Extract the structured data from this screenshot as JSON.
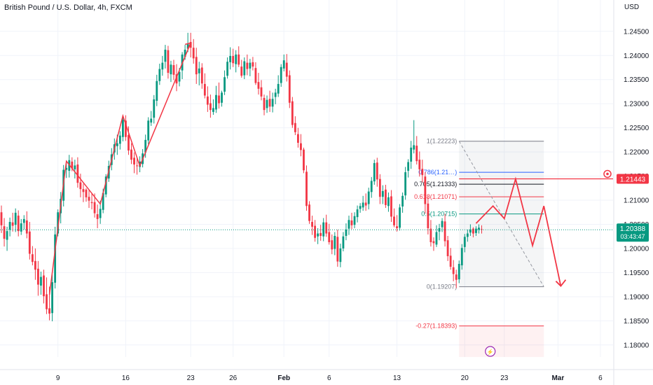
{
  "header": {
    "title": "British Pound / U.S. Dollar, 4h, FXCM",
    "currency": "USD"
  },
  "colors": {
    "up": "#089981",
    "down": "#f23645",
    "drawing": "#f23645",
    "blue": "#2962ff",
    "grid": "#f0f3fa"
  },
  "chart_data": {
    "type": "candlestick",
    "title": "British Pound / U.S. Dollar, 4h, FXCM",
    "ylabel": "USD",
    "ylim": [
      1.1775,
      1.2515
    ],
    "y_ticks": [
      "1.18000",
      "1.18500",
      "1.19000",
      "1.19500",
      "1.20000",
      "1.20500",
      "1.21000",
      "1.21500",
      "1.22000",
      "1.22500",
      "1.23000",
      "1.23500",
      "1.24000",
      "1.24500"
    ],
    "x_ticks": [
      "9",
      "16",
      "23",
      "26",
      "Feb",
      "6",
      "13",
      "20",
      "23",
      "Mar",
      "6"
    ],
    "x_tick_index": [
      20,
      44,
      67,
      82,
      100,
      116,
      140,
      164,
      178,
      197,
      212
    ],
    "n_bars": 217,
    "ohlc": [
      [
        1.2075,
        1.2089,
        1.2032,
        1.2048
      ],
      [
        1.2046,
        1.2063,
        1.2004,
        1.202
      ],
      [
        1.2018,
        1.2045,
        1.1995,
        1.2036
      ],
      [
        1.2039,
        1.2064,
        1.2025,
        1.2055
      ],
      [
        1.2054,
        1.2074,
        1.2035,
        1.2047
      ],
      [
        1.2049,
        1.2083,
        1.2034,
        1.2074
      ],
      [
        1.2068,
        1.2079,
        1.2025,
        1.2036
      ],
      [
        1.2035,
        1.2061,
        1.2028,
        1.2052
      ],
      [
        1.2053,
        1.2069,
        1.2039,
        1.2061
      ],
      [
        1.2058,
        1.2077,
        1.2021,
        1.2031
      ],
      [
        1.2035,
        1.2055,
        1.1977,
        1.1989
      ],
      [
        1.1988,
        1.2005,
        1.1965,
        1.1972
      ],
      [
        1.1974,
        1.2,
        1.1935,
        1.1956
      ],
      [
        1.1958,
        1.1974,
        1.1902,
        1.1925
      ],
      [
        1.1923,
        1.1952,
        1.1904,
        1.1941
      ],
      [
        1.1944,
        1.1956,
        1.1886,
        1.1901
      ],
      [
        1.1905,
        1.194,
        1.1864,
        1.1874
      ],
      [
        1.1876,
        1.1921,
        1.1851,
        1.1865
      ],
      [
        1.1866,
        1.1947,
        1.1849,
        1.193
      ],
      [
        1.1929,
        1.2045,
        1.1917,
        1.2029
      ],
      [
        1.2031,
        1.2081,
        1.2025,
        1.2075
      ],
      [
        1.2073,
        1.2117,
        1.2052,
        1.2103
      ],
      [
        1.2099,
        1.2173,
        1.2087,
        1.2163
      ],
      [
        1.2163,
        1.2182,
        1.2146,
        1.2167
      ],
      [
        1.2161,
        1.2194,
        1.2147,
        1.2183
      ],
      [
        1.218,
        1.2189,
        1.216,
        1.2166
      ],
      [
        1.2164,
        1.2184,
        1.2145,
        1.2172
      ],
      [
        1.2174,
        1.2189,
        1.2126,
        1.2136
      ],
      [
        1.2137,
        1.2155,
        1.2106,
        1.2123
      ],
      [
        1.2123,
        1.2134,
        1.2096,
        1.2117
      ],
      [
        1.2122,
        1.2125,
        1.2097,
        1.2106
      ],
      [
        1.2107,
        1.2121,
        1.2084,
        1.2099
      ],
      [
        1.2096,
        1.2115,
        1.2081,
        1.2094
      ],
      [
        1.2096,
        1.2114,
        1.2064,
        1.2073
      ],
      [
        1.2071,
        1.2091,
        1.2042,
        1.2061
      ],
      [
        1.2063,
        1.2099,
        1.2051,
        1.2082
      ],
      [
        1.208,
        1.2124,
        1.2073,
        1.2115
      ],
      [
        1.2112,
        1.2154,
        1.2106,
        1.2149
      ],
      [
        1.2145,
        1.2182,
        1.2138,
        1.2171
      ],
      [
        1.2173,
        1.2208,
        1.2162,
        1.2195
      ],
      [
        1.2199,
        1.2228,
        1.2184,
        1.2216
      ],
      [
        1.2212,
        1.2236,
        1.2194,
        1.2218
      ],
      [
        1.2217,
        1.2243,
        1.2205,
        1.2234
      ],
      [
        1.2231,
        1.2276,
        1.2222,
        1.2267
      ],
      [
        1.2265,
        1.2276,
        1.2223,
        1.2231
      ],
      [
        1.2235,
        1.2253,
        1.2194,
        1.2203
      ],
      [
        1.2205,
        1.2218,
        1.2175,
        1.2184
      ],
      [
        1.2188,
        1.2199,
        1.2156,
        1.2174
      ],
      [
        1.2172,
        1.2187,
        1.2153,
        1.2171
      ],
      [
        1.2169,
        1.2191,
        1.2158,
        1.218
      ],
      [
        1.2175,
        1.2206,
        1.2168,
        1.2197
      ],
      [
        1.2199,
        1.2236,
        1.2188,
        1.2225
      ],
      [
        1.2224,
        1.2272,
        1.2216,
        1.2265
      ],
      [
        1.2261,
        1.2285,
        1.2254,
        1.2269
      ],
      [
        1.2271,
        1.2318,
        1.2259,
        1.2309
      ],
      [
        1.2306,
        1.236,
        1.2295,
        1.2347
      ],
      [
        1.2347,
        1.2383,
        1.2339,
        1.2372
      ],
      [
        1.2371,
        1.2399,
        1.2358,
        1.2385
      ],
      [
        1.2387,
        1.2422,
        1.2373,
        1.2412
      ],
      [
        1.2411,
        1.242,
        1.2352,
        1.2364
      ],
      [
        1.2361,
        1.2389,
        1.2345,
        1.2381
      ],
      [
        1.238,
        1.2391,
        1.2349,
        1.236
      ],
      [
        1.2361,
        1.2382,
        1.2326,
        1.2342
      ],
      [
        1.2346,
        1.2374,
        1.2336,
        1.2366
      ],
      [
        1.2369,
        1.2407,
        1.2351,
        1.2402
      ],
      [
        1.2397,
        1.2422,
        1.2391,
        1.2412
      ],
      [
        1.2414,
        1.2447,
        1.2407,
        1.2424
      ],
      [
        1.2428,
        1.2447,
        1.2396,
        1.2416
      ],
      [
        1.2416,
        1.2434,
        1.2383,
        1.2394
      ],
      [
        1.2397,
        1.2416,
        1.2341,
        1.2361
      ],
      [
        1.2363,
        1.2387,
        1.2338,
        1.2373
      ],
      [
        1.2375,
        1.2384,
        1.2331,
        1.2342
      ],
      [
        1.2341,
        1.2363,
        1.2311,
        1.2317
      ],
      [
        1.2315,
        1.2336,
        1.2283,
        1.2298
      ],
      [
        1.2301,
        1.2319,
        1.2271,
        1.2287
      ],
      [
        1.2283,
        1.2309,
        1.2277,
        1.2291
      ],
      [
        1.2288,
        1.2337,
        1.2281,
        1.2318
      ],
      [
        1.2317,
        1.2344,
        1.229,
        1.2301
      ],
      [
        1.2302,
        1.2327,
        1.2294,
        1.2323
      ],
      [
        1.2325,
        1.2369,
        1.2318,
        1.2355
      ],
      [
        1.2358,
        1.2396,
        1.2352,
        1.2387
      ],
      [
        1.2386,
        1.2417,
        1.2371,
        1.2399
      ],
      [
        1.2399,
        1.2414,
        1.2376,
        1.2384
      ],
      [
        1.2382,
        1.2411,
        1.2365,
        1.2402
      ],
      [
        1.2402,
        1.2419,
        1.2376,
        1.2381
      ],
      [
        1.2377,
        1.2391,
        1.2354,
        1.2358
      ],
      [
        1.2359,
        1.2396,
        1.2351,
        1.2388
      ],
      [
        1.2385,
        1.2402,
        1.2359,
        1.2372
      ],
      [
        1.2373,
        1.2393,
        1.2357,
        1.2385
      ],
      [
        1.2386,
        1.2397,
        1.2369,
        1.2377
      ],
      [
        1.2374,
        1.2386,
        1.2339,
        1.2343
      ],
      [
        1.2345,
        1.2364,
        1.2319,
        1.2331
      ],
      [
        1.2334,
        1.2349,
        1.2307,
        1.2315
      ],
      [
        1.2312,
        1.2319,
        1.2276,
        1.2287
      ],
      [
        1.2291,
        1.2317,
        1.2281,
        1.2308
      ],
      [
        1.231,
        1.2327,
        1.2283,
        1.2294
      ],
      [
        1.2294,
        1.2323,
        1.2282,
        1.231
      ],
      [
        1.2314,
        1.2331,
        1.2299,
        1.2323
      ],
      [
        1.2321,
        1.2359,
        1.2314,
        1.2341
      ],
      [
        1.2343,
        1.2382,
        1.2335,
        1.2376
      ],
      [
        1.2373,
        1.2402,
        1.2367,
        1.239
      ],
      [
        1.2385,
        1.2403,
        1.2346,
        1.2356
      ],
      [
        1.2359,
        1.2369,
        1.2291,
        1.2302
      ],
      [
        1.2305,
        1.2314,
        1.225,
        1.2256
      ],
      [
        1.226,
        1.2274,
        1.2235,
        1.2241
      ],
      [
        1.2237,
        1.225,
        1.2209,
        1.2219
      ],
      [
        1.2218,
        1.2237,
        1.2191,
        1.2204
      ],
      [
        1.2205,
        1.2209,
        1.2156,
        1.2162
      ],
      [
        1.2159,
        1.2172,
        1.2078,
        1.2088
      ],
      [
        1.2091,
        1.2098,
        1.2051,
        1.2057
      ],
      [
        1.2055,
        1.2068,
        1.2028,
        1.2045
      ],
      [
        1.2047,
        1.2059,
        1.2014,
        1.2022
      ],
      [
        1.2025,
        1.2042,
        1.2009,
        1.2031
      ],
      [
        1.2032,
        1.2049,
        1.2016,
        1.2026
      ],
      [
        1.2025,
        1.2063,
        1.2015,
        1.2054
      ],
      [
        1.2054,
        1.207,
        1.2024,
        1.2031
      ],
      [
        1.2034,
        1.2051,
        1.2008,
        1.2013
      ],
      [
        1.2017,
        1.2029,
        1.1988,
        1.1998
      ],
      [
        1.1999,
        1.2034,
        1.1986,
        1.2026
      ],
      [
        1.2024,
        1.2039,
        1.1962,
        1.1973
      ],
      [
        1.1972,
        1.201,
        1.1961,
        1.2
      ],
      [
        1.2,
        1.2034,
        1.1994,
        1.2025
      ],
      [
        1.2026,
        1.2052,
        1.2017,
        1.2039
      ],
      [
        1.2041,
        1.2068,
        1.2028,
        1.2059
      ],
      [
        1.2058,
        1.2074,
        1.204,
        1.2048
      ],
      [
        1.2049,
        1.2075,
        1.2042,
        1.2067
      ],
      [
        1.2065,
        1.2089,
        1.2054,
        1.2081
      ],
      [
        1.2082,
        1.2094,
        1.2074,
        1.2088
      ],
      [
        1.2085,
        1.2109,
        1.2078,
        1.2095
      ],
      [
        1.2095,
        1.2114,
        1.2078,
        1.2089
      ],
      [
        1.2092,
        1.2126,
        1.2081,
        1.2118
      ],
      [
        1.2117,
        1.2148,
        1.2105,
        1.214
      ],
      [
        1.2139,
        1.2184,
        1.2132,
        1.2177
      ],
      [
        1.2178,
        1.2188,
        1.2128,
        1.2143
      ],
      [
        1.2144,
        1.2154,
        1.2092,
        1.2107
      ],
      [
        1.2107,
        1.2131,
        1.2092,
        1.2119
      ],
      [
        1.2122,
        1.2132,
        1.2084,
        1.209
      ],
      [
        1.2088,
        1.2116,
        1.2076,
        1.2106
      ],
      [
        1.2108,
        1.2121,
        1.2055,
        1.2066
      ],
      [
        1.2066,
        1.2083,
        1.2044,
        1.2048
      ],
      [
        1.2046,
        1.2069,
        1.2035,
        1.2042
      ],
      [
        1.2043,
        1.2092,
        1.2037,
        1.2085
      ],
      [
        1.2087,
        1.2116,
        1.2074,
        1.2109
      ],
      [
        1.211,
        1.2169,
        1.2101,
        1.2158
      ],
      [
        1.2161,
        1.2185,
        1.2147,
        1.2179
      ],
      [
        1.218,
        1.2223,
        1.2165,
        1.2209
      ],
      [
        1.2205,
        1.2266,
        1.2197,
        1.2214
      ],
      [
        1.2213,
        1.2233,
        1.2174,
        1.2181
      ],
      [
        1.2184,
        1.2201,
        1.2149,
        1.2164
      ],
      [
        1.2165,
        1.2184,
        1.2137,
        1.2152
      ],
      [
        1.2149,
        1.2158,
        1.2072,
        1.2092
      ],
      [
        1.2093,
        1.2106,
        1.2029,
        1.2042
      ],
      [
        1.2041,
        1.2059,
        1.2004,
        1.2013
      ],
      [
        1.2015,
        1.2023,
        1.1995,
        1.2011
      ],
      [
        1.2008,
        1.2048,
        1.2003,
        1.2034
      ],
      [
        1.2035,
        1.2051,
        1.2017,
        1.2042
      ],
      [
        1.2044,
        1.2063,
        1.2034,
        1.2057
      ],
      [
        1.2056,
        1.2072,
        1.2004,
        1.2015
      ],
      [
        1.2017,
        1.2026,
        1.1974,
        1.1984
      ],
      [
        1.1985,
        1.2001,
        1.1956,
        1.1962
      ],
      [
        1.1961,
        1.1976,
        1.1932,
        1.1947
      ],
      [
        1.1946,
        1.1956,
        1.1918,
        1.1935
      ],
      [
        1.1936,
        1.1975,
        1.1928,
        1.1968
      ],
      [
        1.1965,
        1.2009,
        1.1956,
        1.2001
      ],
      [
        1.2003,
        1.203,
        1.1992,
        1.2024
      ],
      [
        1.2024,
        1.2039,
        1.2014,
        1.2031
      ],
      [
        1.2033,
        1.205,
        1.2026,
        1.2039
      ],
      [
        1.2041,
        1.2044,
        1.2023,
        1.2031
      ],
      [
        1.2032,
        1.2046,
        1.2026,
        1.2041
      ],
      [
        1.2039,
        1.205,
        1.2031,
        1.2043
      ],
      [
        1.204,
        1.2048,
        1.2031,
        1.2039
      ]
    ],
    "current_price": "1.20388",
    "countdown": "03:43:47",
    "alert_price": "1.21443",
    "fib_labels": [
      "1(1.22223)",
      "0.786(1.21…)",
      "0.705(1.21333)",
      "0.618(1.21071)",
      "0.5(1.20715)",
      "0(1.19207)",
      "-0.27(1.18393)"
    ],
    "fib_values": [
      1.22223,
      1.21579,
      1.21333,
      1.21071,
      1.20715,
      1.19207,
      1.18393
    ],
    "fib_colors": [
      "#787b86",
      "#2962ff",
      "#131722",
      "#f23645",
      "#089981",
      "#787b86",
      "#f23645"
    ],
    "fib_range_index": [
      162,
      192
    ],
    "trend_projection": [
      [
        168,
        1.2052
      ],
      [
        174,
        1.2088
      ],
      [
        178,
        1.2062
      ],
      [
        182,
        1.2144
      ],
      [
        188,
        1.2006
      ],
      [
        192,
        1.2088
      ],
      [
        198,
        1.1922
      ]
    ],
    "historical_path": [
      [
        17,
        1.1904
      ],
      [
        23,
        1.2181
      ],
      [
        35,
        1.2092
      ],
      [
        43,
        1.2275
      ],
      [
        49,
        1.2171
      ],
      [
        67,
        1.2426
      ]
    ]
  }
}
